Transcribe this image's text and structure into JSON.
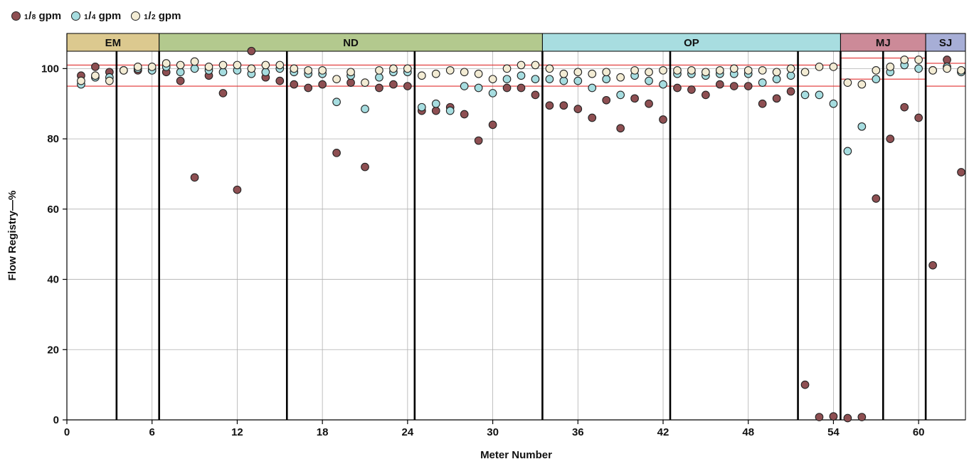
{
  "chart_data": {
    "type": "scatter",
    "title": "",
    "xlabel": "Meter Number",
    "ylabel": "Flow Registry—%",
    "xlim": [
      0,
      63.3
    ],
    "ylim": [
      0,
      110
    ],
    "xticks": [
      0,
      6,
      12,
      18,
      24,
      30,
      36,
      42,
      48,
      54,
      60
    ],
    "yticks": [
      0,
      20,
      40,
      60,
      80,
      100
    ],
    "grid": true,
    "legend_position": "top-left",
    "legend": [
      {
        "num": "1",
        "den": "8",
        "unit": "gpm",
        "color": "#8e4f52"
      },
      {
        "num": "1",
        "den": "4",
        "unit": "gpm",
        "color": "#a6dde0"
      },
      {
        "num": "1",
        "den": "2",
        "unit": "gpm",
        "color": "#f3ecd4"
      }
    ],
    "groups": [
      {
        "label": "EM",
        "x_start": 0,
        "x_end": 6.5,
        "color": "#dcc98f"
      },
      {
        "label": "ND",
        "x_start": 6.5,
        "x_end": 33.5,
        "color": "#b3c98e"
      },
      {
        "label": "OP",
        "x_start": 33.5,
        "x_end": 54.5,
        "color": "#a8dde0"
      },
      {
        "label": "MJ",
        "x_start": 54.5,
        "x_end": 60.5,
        "color": "#cc8a98"
      },
      {
        "label": "SJ",
        "x_start": 60.5,
        "x_end": 63.3,
        "color": "#a7aed6"
      }
    ],
    "separators": [
      3.5,
      6.5,
      15.5,
      24.5,
      33.5,
      42.5,
      51.5,
      54.5,
      57.5,
      60.5
    ],
    "reference_lines": [
      {
        "y": 101,
        "x_start": 0,
        "x_end": 54.5
      },
      {
        "y": 95,
        "x_start": 0,
        "x_end": 54.5
      },
      {
        "y": 103,
        "x_start": 54.5,
        "x_end": 60.5
      },
      {
        "y": 97,
        "x_start": 54.5,
        "x_end": 60.5
      },
      {
        "y": 101.5,
        "x_start": 60.5,
        "x_end": 63.3
      },
      {
        "y": 95,
        "x_start": 60.5,
        "x_end": 63.3
      }
    ],
    "reference_line_color": "#e03030",
    "x": [
      1,
      2,
      3,
      4,
      5,
      6,
      7,
      8,
      9,
      10,
      11,
      12,
      13,
      14,
      15,
      16,
      17,
      18,
      19,
      20,
      21,
      22,
      23,
      24,
      25,
      26,
      27,
      28,
      29,
      30,
      31,
      32,
      33,
      34,
      35,
      36,
      37,
      38,
      39,
      40,
      41,
      42,
      43,
      44,
      45,
      46,
      47,
      48,
      49,
      50,
      51,
      52,
      53,
      54,
      55,
      56,
      57,
      58,
      59,
      60,
      61,
      62,
      63
    ],
    "series": [
      {
        "name": "1/8 gpm",
        "color": "#8e4f52",
        "values": [
          98.0,
          100.5,
          99.0,
          99.5,
          99.5,
          99.5,
          99.0,
          96.5,
          69.0,
          98.0,
          93.0,
          65.5,
          105.0,
          97.5,
          96.5,
          95.5,
          94.5,
          95.5,
          76.0,
          96.0,
          72.0,
          94.5,
          95.5,
          95.0,
          88.0,
          88.0,
          89.0,
          87.0,
          79.5,
          84.0,
          94.5,
          94.5,
          92.5,
          89.5,
          89.5,
          88.5,
          86.0,
          91.0,
          83.0,
          91.5,
          90.0,
          85.5,
          94.5,
          94.0,
          92.5,
          95.5,
          95.0,
          95.0,
          90.0,
          91.5,
          93.5,
          10.0,
          0.8,
          1.0,
          0.5,
          0.8,
          63.0,
          80.0,
          89.0,
          86.0,
          44.0,
          102.5,
          70.5
        ]
      },
      {
        "name": "1/4 gpm",
        "color": "#a6dde0",
        "values": [
          95.5,
          97.5,
          97.5,
          99.5,
          100.0,
          99.5,
          100.5,
          99.0,
          100.0,
          99.5,
          99.0,
          99.5,
          98.5,
          99.0,
          100.0,
          99.0,
          98.5,
          98.5,
          90.5,
          98.0,
          88.5,
          97.5,
          99.0,
          99.0,
          89.0,
          90.0,
          88.0,
          95.0,
          94.5,
          93.0,
          97.0,
          98.0,
          97.0,
          97.0,
          96.5,
          96.5,
          94.5,
          97.0,
          92.5,
          98.0,
          96.5,
          95.5,
          98.5,
          98.5,
          98.0,
          98.5,
          98.5,
          98.5,
          96.0,
          97.0,
          98.0,
          92.5,
          92.5,
          90.0,
          76.5,
          83.5,
          97.0,
          99.0,
          101.0,
          100.0,
          99.5,
          100.5,
          99.0
        ]
      },
      {
        "name": "1/2 gpm",
        "color": "#f3ecd4",
        "values": [
          96.5,
          98.0,
          96.5,
          99.5,
          100.5,
          100.5,
          101.5,
          101.0,
          102.0,
          100.5,
          101.0,
          101.0,
          100.0,
          101.0,
          101.0,
          100.0,
          99.5,
          99.5,
          97.0,
          99.0,
          96.0,
          99.5,
          100.0,
          100.0,
          98.0,
          98.5,
          99.5,
          99.0,
          98.5,
          97.0,
          100.0,
          101.0,
          101.0,
          100.0,
          98.5,
          99.0,
          98.5,
          99.0,
          97.5,
          99.5,
          99.0,
          99.5,
          99.5,
          99.5,
          99.0,
          99.5,
          100.0,
          99.5,
          99.5,
          99.0,
          100.0,
          99.0,
          100.5,
          100.5,
          96.0,
          95.5,
          99.5,
          100.5,
          102.5,
          102.5,
          99.5,
          100.0,
          99.5
        ]
      }
    ]
  }
}
